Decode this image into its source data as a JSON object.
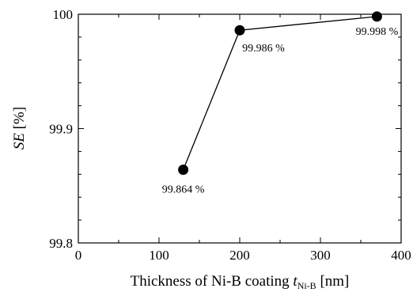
{
  "chart_data": {
    "type": "line",
    "title": "",
    "xlabel": {
      "prefix": "Thickness of Ni-B coating ",
      "var": "t",
      "sub": "Ni-B",
      "suffix": " [nm]"
    },
    "ylabel": {
      "var": "SE",
      "suffix": " [%]"
    },
    "xlim": [
      0,
      400
    ],
    "ylim": [
      99.8,
      100
    ],
    "xticks": [
      0,
      100,
      200,
      300,
      400
    ],
    "xticks_minor_step": 50,
    "yticks": [
      99.8,
      99.9,
      100
    ],
    "yticks_minor_step": 0.02,
    "ytick_labels": [
      "99.8",
      "99.9",
      "100"
    ],
    "grid": false,
    "legend": "none",
    "marker": "filled-circle",
    "series": [
      {
        "x": [
          130,
          200,
          370
        ],
        "y": [
          99.864,
          99.986,
          99.998
        ],
        "labels": [
          "99.864 %",
          "99.986 %",
          "99.998 %"
        ]
      }
    ],
    "colors": {
      "line": "#000000",
      "marker": "#000000",
      "axes": "#000000"
    }
  }
}
